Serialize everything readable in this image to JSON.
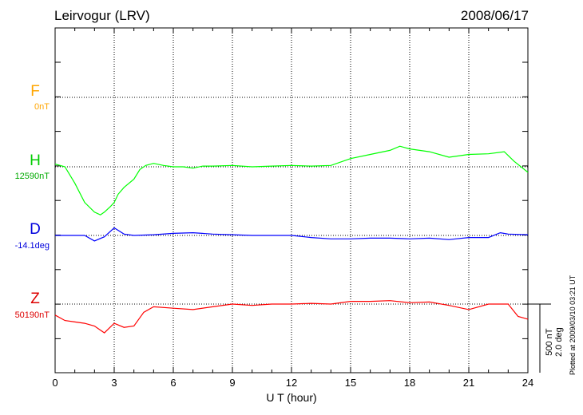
{
  "header": {
    "station": "Leirvogur (LRV)",
    "date": "2008/06/17"
  },
  "components": [
    {
      "letter": "F",
      "baseline": "0nT",
      "color": "#ffa500"
    },
    {
      "letter": "H",
      "baseline": "12590nT",
      "color": "#00cc00"
    },
    {
      "letter": "D",
      "baseline": "-14.1deg",
      "color": "#0000dd"
    },
    {
      "letter": "Z",
      "baseline": "50190nT",
      "color": "#dd0000"
    }
  ],
  "scale": {
    "line1": "500 nT",
    "line2": "2.0 deg"
  },
  "footer_note": "Plotted at 2009/03/10 03:21 UT",
  "chart_data": {
    "type": "line",
    "title": "Leirvogur (LRV)",
    "xlabel": "U T (hour)",
    "xlim": [
      0,
      24
    ],
    "xticks": [
      "0",
      "3",
      "6",
      "9",
      "12",
      "15",
      "18",
      "21",
      "24"
    ],
    "series": [
      {
        "name": "H",
        "color": "#00ff00",
        "x": [
          0,
          0.5,
          1,
          1.5,
          2,
          2.3,
          2.5,
          2.8,
          3,
          3.2,
          3.5,
          4,
          4.3,
          4.6,
          5,
          5.5,
          6,
          6.5,
          7,
          7.5,
          8,
          9,
          10,
          11,
          12,
          13,
          14,
          15,
          16,
          17,
          17.5,
          18,
          19,
          20,
          21,
          22,
          22.8,
          23.3,
          24
        ],
        "y": [
          20,
          0,
          -120,
          -260,
          -330,
          -350,
          -330,
          -290,
          -260,
          -200,
          -150,
          -90,
          -20,
          10,
          25,
          10,
          0,
          0,
          -10,
          5,
          5,
          10,
          0,
          5,
          10,
          5,
          10,
          60,
          90,
          120,
          150,
          130,
          110,
          70,
          90,
          95,
          110,
          40,
          -40
        ]
      },
      {
        "name": "D",
        "color": "#0000ff",
        "x": [
          0,
          0.5,
          1,
          1.5,
          2,
          2.5,
          3,
          3.5,
          4,
          5,
          6,
          7,
          8,
          9,
          10,
          11,
          12,
          13,
          14,
          15,
          16,
          17,
          18,
          19,
          20,
          21,
          22,
          22.6,
          23,
          24
        ],
        "y": [
          0,
          0,
          0,
          0,
          -40,
          -10,
          55,
          10,
          0,
          5,
          15,
          20,
          10,
          5,
          0,
          0,
          0,
          -15,
          -25,
          -25,
          -20,
          -20,
          -25,
          -20,
          -30,
          -15,
          -15,
          20,
          10,
          5
        ]
      },
      {
        "name": "Z",
        "color": "#ff0000",
        "x": [
          0,
          0.5,
          1,
          1.5,
          2,
          2.5,
          3,
          3.5,
          4,
          4.5,
          5,
          6,
          7,
          8,
          9,
          10,
          11,
          12,
          13,
          14,
          15,
          16,
          17,
          18,
          19,
          20,
          21,
          22,
          23,
          23.5,
          24
        ],
        "y": [
          -80,
          -120,
          -130,
          -140,
          -160,
          -210,
          -140,
          -170,
          -160,
          -60,
          -20,
          -30,
          -40,
          -20,
          0,
          -10,
          0,
          0,
          5,
          0,
          20,
          20,
          25,
          10,
          15,
          -10,
          -40,
          0,
          0,
          -90,
          -110
        ]
      }
    ]
  }
}
